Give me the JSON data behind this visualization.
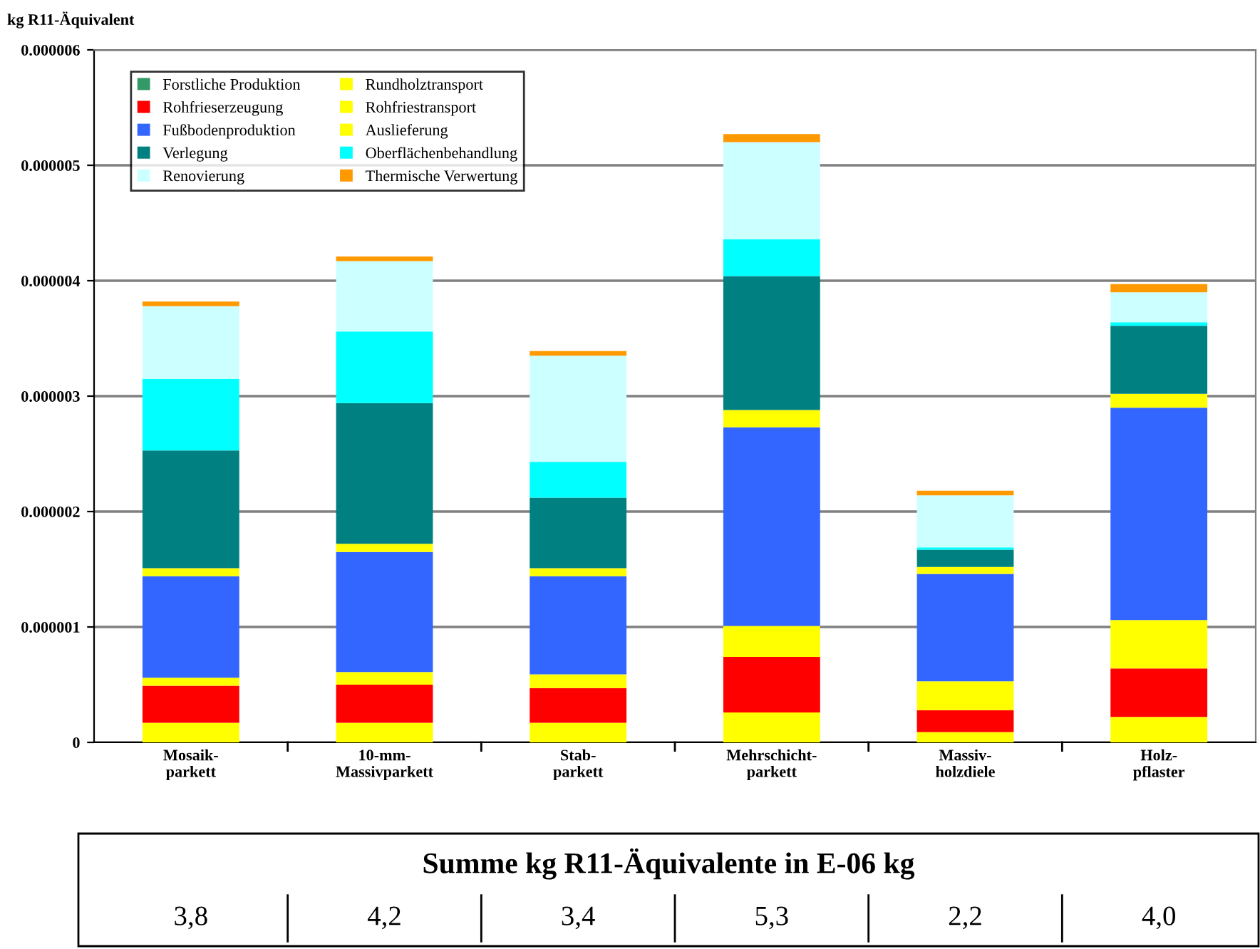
{
  "chart_data": {
    "type": "bar",
    "stacked": true,
    "ylabel": "kg R11-Äquivalent",
    "categories": [
      "Mosaik-\nparkett",
      "10-mm-\nMassivparkett",
      "Stab-\nparkett",
      "Mehrschicht-\nparkett",
      "Massiv-\nholzdiele",
      "Holz-\npflaster"
    ],
    "series": [
      {
        "name": "Forstliche Produktion",
        "color": "#339966",
        "values": [
          0,
          0,
          0,
          0,
          0,
          0
        ]
      },
      {
        "name": "Rundholztransport",
        "color": "#ffff00",
        "values": [
          1.7e-07,
          1.7e-07,
          1.7e-07,
          2.6e-07,
          9e-08,
          2.2e-07
        ]
      },
      {
        "name": "Rohfrieserzeugung",
        "color": "#ff0000",
        "values": [
          3.2e-07,
          3.3e-07,
          3e-07,
          4.8e-07,
          1.9e-07,
          4.2e-07
        ]
      },
      {
        "name": "Rohfriestransport",
        "color": "#ffff00",
        "values": [
          7e-08,
          1.1e-07,
          1.2e-07,
          2.7e-07,
          2.5e-07,
          4.2e-07
        ]
      },
      {
        "name": "Fußbodenproduktion",
        "color": "#3366ff",
        "values": [
          8.8e-07,
          1.04e-06,
          8.5e-07,
          1.72e-06,
          9.3e-07,
          1.84e-06
        ]
      },
      {
        "name": "Auslieferung",
        "color": "#ffff00",
        "values": [
          7e-08,
          7e-08,
          7e-08,
          1.5e-07,
          6e-08,
          1.2e-07
        ]
      },
      {
        "name": "Verlegung",
        "color": "#008080",
        "values": [
          1.02e-06,
          1.22e-06,
          6.1e-07,
          1.16e-06,
          1.5e-07,
          5.9e-07
        ]
      },
      {
        "name": "Oberflächenbehandlung",
        "color": "#00ffff",
        "values": [
          6.2e-07,
          6.2e-07,
          3.1e-07,
          3.2e-07,
          2e-08,
          3e-08
        ]
      },
      {
        "name": "Renovierung",
        "color": "#ccffff",
        "values": [
          6.3e-07,
          6.1e-07,
          9.2e-07,
          8.4e-07,
          4.5e-07,
          2.6e-07
        ]
      },
      {
        "name": "Thermische Verwertung",
        "color": "#ff9900",
        "values": [
          4e-08,
          4e-08,
          4e-08,
          7e-08,
          4e-08,
          7e-08
        ]
      }
    ],
    "ylim": [
      0,
      6e-06
    ],
    "yticks": [
      0,
      {
        "value": 1e-06,
        "label": "0.000001"
      },
      {
        "value": 2e-06,
        "label": "0.000002"
      },
      {
        "value": 3e-06,
        "label": "0.000003"
      },
      {
        "value": 4e-06,
        "label": "0.000004"
      },
      {
        "value": 5e-06,
        "label": "0.000005"
      },
      {
        "value": 6e-06,
        "label": "0.000006"
      }
    ],
    "grid": "y",
    "legend": "top left",
    "annotations": [
      "Summe kg R11-Äquivalente in E-06 kg",
      "3,8",
      "4,2",
      "3,4",
      "5,3",
      "2,2",
      "4,0"
    ]
  }
}
